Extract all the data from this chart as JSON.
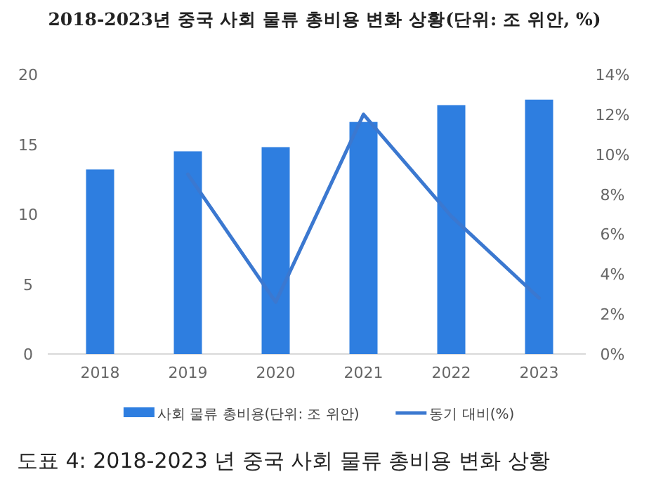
{
  "chart_data": {
    "type": "bar",
    "title": "2018-2023년 중국 사회 물류 총비용 변화 상황(단위: 조 위안, %)",
    "categories": [
      "2018",
      "2019",
      "2020",
      "2021",
      "2022",
      "2023"
    ],
    "series": [
      {
        "name": "사회 물류 총비용(단위: 조 위안)",
        "color": "#2e7ee0",
        "values": [
          13.2,
          14.5,
          14.8,
          16.6,
          17.8,
          18.2
        ]
      },
      {
        "name": "동기 대비(%)",
        "type": "line",
        "axis": "y2",
        "color": "#3b78d0",
        "values": [
          null,
          9.0,
          2.6,
          12.0,
          6.9,
          2.8
        ]
      }
    ],
    "ylim": [
      0,
      20
    ],
    "yticks": [
      0,
      5,
      10,
      15,
      20
    ],
    "y2lim": [
      0,
      14
    ],
    "y2ticks": [
      {
        "value": 0,
        "label": "0%"
      },
      {
        "value": 2,
        "label": "2%"
      },
      {
        "value": 4,
        "label": "4%"
      },
      {
        "value": 6,
        "label": "6%"
      },
      {
        "value": 8,
        "label": "8%"
      },
      {
        "value": 10,
        "label": "10%"
      },
      {
        "value": 12,
        "label": "12%"
      },
      {
        "value": 14,
        "label": "14%"
      }
    ],
    "grid": false,
    "legend": "bottom",
    "marker": "none",
    "line_style": "solid",
    "annotations": [
      "도표 4: 2018-2023 년 중국 사회 물류 총비용 변화 상황"
    ]
  }
}
